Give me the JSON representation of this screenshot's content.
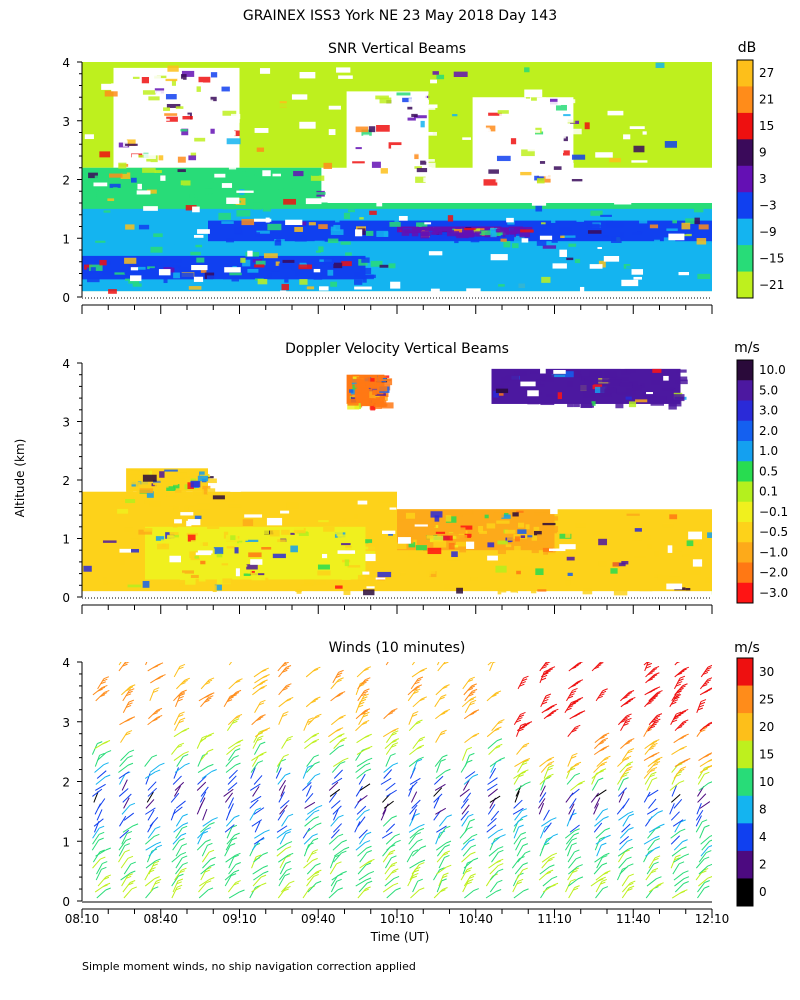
{
  "header": {
    "title": "GRAINEX ISS3 York NE  23 May 2018 Day 143",
    "y_axis_label": "Altitude (km)",
    "x_axis_label": "Time (UT)",
    "footer_note": "Simple moment winds, no ship navigation correction applied"
  },
  "colors": {
    "white": "#ffffff",
    "black": "#000000"
  },
  "chart_data": [
    {
      "type": "heatmap",
      "title": "SNR Vertical Beams",
      "x_ticks": [
        "08:10",
        "08:40",
        "09:10",
        "09:40",
        "10:10",
        "10:40",
        "11:10",
        "11:40",
        "12:10"
      ],
      "xlim": [
        "08:10",
        "12:10"
      ],
      "y_ticks": [
        "0",
        "1",
        "2",
        "3",
        "4"
      ],
      "ylim": [
        0,
        4
      ],
      "colorbar": {
        "unit": "dB",
        "labels": [
          "27",
          "21",
          "15",
          "9",
          "3",
          "−3",
          "−9",
          "−15",
          "−21"
        ],
        "colors": [
          "#fdbf1a",
          "#ff8c1a",
          "#ee1010",
          "#3a0a5a",
          "#6410b4",
          "#1040f0",
          "#14b4f0",
          "#28dc78",
          "#bef01e"
        ]
      },
      "bands": [
        {
          "color": "#bef01e",
          "y0": 2.2,
          "y1": 4.0,
          "x0": 0,
          "x1": 1
        },
        {
          "color": "#ffffff",
          "y0": 2.2,
          "y1": 3.9,
          "x0": 0.05,
          "x1": 0.25
        },
        {
          "color": "#ffffff",
          "y0": 2.0,
          "y1": 3.5,
          "x0": 0.42,
          "x1": 0.55
        },
        {
          "color": "#ffffff",
          "y0": 2.0,
          "y1": 3.4,
          "x0": 0.62,
          "x1": 0.78
        },
        {
          "color": "#28dc78",
          "y0": 1.6,
          "y1": 2.2,
          "x0": 0,
          "x1": 0.38
        },
        {
          "color": "#28dc78",
          "y0": 0.1,
          "y1": 1.6,
          "x0": 0,
          "x1": 1
        },
        {
          "color": "#14b4f0",
          "y0": 0.1,
          "y1": 1.5,
          "x0": 0,
          "x1": 1
        },
        {
          "color": "#1040f0",
          "y0": 0.95,
          "y1": 1.3,
          "x0": 0.2,
          "x1": 1
        },
        {
          "color": "#1040f0",
          "y0": 0.3,
          "y1": 0.7,
          "x0": 0,
          "x1": 0.45
        },
        {
          "color": "#6410b4",
          "y0": 1.1,
          "y1": 1.2,
          "x0": 0.5,
          "x1": 0.7
        }
      ]
    },
    {
      "type": "heatmap",
      "title": "Doppler Velocity Vertical Beams",
      "x_ticks": [
        "08:10",
        "08:40",
        "09:10",
        "09:40",
        "10:10",
        "10:40",
        "11:10",
        "11:40",
        "12:10"
      ],
      "xlim": [
        "08:10",
        "12:10"
      ],
      "y_ticks": [
        "0",
        "1",
        "2",
        "3",
        "4"
      ],
      "ylim": [
        0,
        4
      ],
      "colorbar": {
        "unit": "m/s",
        "labels": [
          "10.0",
          "5.0",
          "3.0",
          "2.0",
          "1.0",
          "0.5",
          "0.1",
          "−0.1",
          "−0.5",
          "−1.0",
          "−2.0",
          "−3.0"
        ],
        "colors": [
          "#2a0a3a",
          "#4c18a0",
          "#2a2ad8",
          "#1460f0",
          "#14a0f0",
          "#28dc50",
          "#b4f01e",
          "#f0f01e",
          "#fdd21a",
          "#fdaa1a",
          "#ff7814",
          "#ff1414"
        ]
      },
      "bands": [
        {
          "color": "#fdd21a",
          "y0": 0.1,
          "y1": 1.8,
          "x0": 0,
          "x1": 0.5
        },
        {
          "color": "#fdd21a",
          "y0": 0.1,
          "y1": 1.5,
          "x0": 0.5,
          "x1": 1
        },
        {
          "color": "#f0f01e",
          "y0": 0.3,
          "y1": 1.2,
          "x0": 0.1,
          "x1": 0.45
        },
        {
          "color": "#fdaa1a",
          "y0": 0.8,
          "y1": 1.5,
          "x0": 0.5,
          "x1": 0.75
        },
        {
          "color": "#fdd21a",
          "y0": 1.8,
          "y1": 2.2,
          "x0": 0.07,
          "x1": 0.2
        },
        {
          "color": "#4c18a0",
          "y0": 3.3,
          "y1": 3.9,
          "x0": 0.65,
          "x1": 0.95
        },
        {
          "color": "#ff7814",
          "y0": 3.3,
          "y1": 3.8,
          "x0": 0.42,
          "x1": 0.48
        }
      ]
    },
    {
      "type": "scatter",
      "title": "Winds (10 minutes)",
      "x_ticks": [
        "08:10",
        "08:40",
        "09:10",
        "09:40",
        "10:10",
        "10:40",
        "11:10",
        "11:40",
        "12:10"
      ],
      "xlim": [
        "08:10",
        "12:10"
      ],
      "y_ticks": [
        "0",
        "1",
        "2",
        "3",
        "4"
      ],
      "ylim": [
        0,
        4
      ],
      "colorbar": {
        "unit": "m/s",
        "labels": [
          "30",
          "25",
          "20",
          "15",
          "10",
          "8",
          "4",
          "2",
          "0"
        ],
        "colors": [
          "#ee1010",
          "#ff8c1a",
          "#fdbf1a",
          "#bef01e",
          "#28dc78",
          "#14b4f0",
          "#1040f0",
          "#4c0a80",
          "#000000"
        ]
      },
      "wind_profile_speeds_ms": [
        {
          "alt_km": 0.2,
          "speed": 15
        },
        {
          "alt_km": 0.6,
          "speed": 14
        },
        {
          "alt_km": 1.0,
          "speed": 10
        },
        {
          "alt_km": 1.4,
          "speed": 6
        },
        {
          "alt_km": 1.8,
          "speed": 3
        },
        {
          "alt_km": 2.2,
          "speed": 12
        },
        {
          "alt_km": 3.0,
          "speed": 25
        }
      ]
    }
  ]
}
